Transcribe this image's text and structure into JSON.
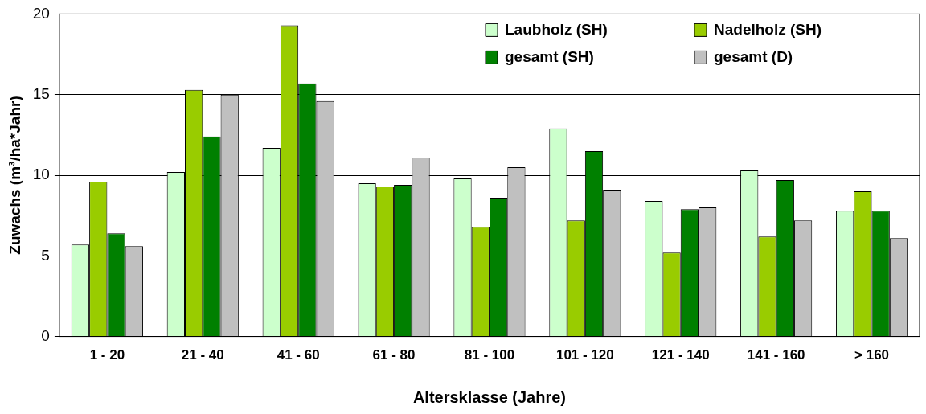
{
  "chart_data": {
    "type": "bar",
    "xlabel": "Altersklasse (Jahre)",
    "ylabel": "Zuwachs (m³/ha*Jahr)",
    "categories": [
      "1 - 20",
      "21 - 40",
      "41 - 60",
      "61 - 80",
      "81 - 100",
      "101 - 120",
      "121 - 140",
      "141 - 160",
      "> 160"
    ],
    "series": [
      {
        "name": "Laubholz (SH)",
        "color": "#ccffcc",
        "values": [
          5.7,
          10.2,
          11.7,
          9.5,
          9.8,
          12.9,
          8.4,
          10.3,
          7.8
        ]
      },
      {
        "name": "Nadelholz (SH)",
        "color": "#99cc00",
        "values": [
          9.6,
          15.3,
          19.3,
          9.3,
          6.8,
          7.2,
          5.2,
          6.2,
          9.0
        ]
      },
      {
        "name": "gesamt (SH)",
        "color": "#008000",
        "values": [
          6.4,
          12.4,
          15.7,
          9.4,
          8.6,
          11.5,
          7.9,
          9.7,
          7.8
        ]
      },
      {
        "name": "gesamt (D)",
        "color": "#c0c0c0",
        "values": [
          5.6,
          15.0,
          14.6,
          11.1,
          10.5,
          9.1,
          8.0,
          7.2,
          6.1
        ]
      }
    ],
    "ylim": [
      0,
      20
    ],
    "yticks": [
      0,
      5,
      10,
      15,
      20
    ],
    "grid": "y",
    "legend": "top right"
  }
}
